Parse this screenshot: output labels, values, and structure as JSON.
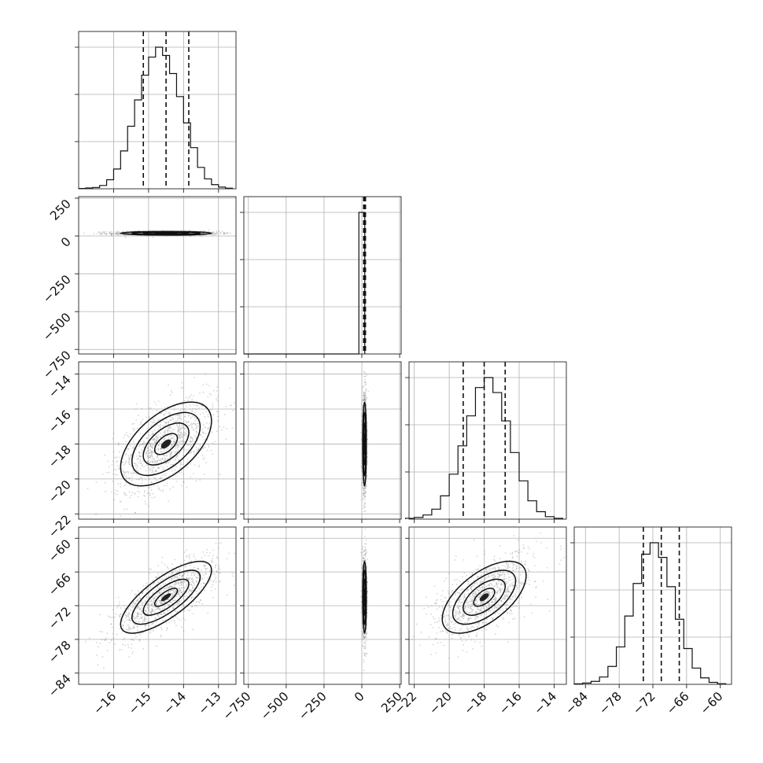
{
  "chart_data": {
    "type": "corner",
    "grid": true,
    "params": [
      {
        "range": [
          -17.0,
          -12.5
        ],
        "ticks": [
          -16,
          -15,
          -14,
          -13
        ],
        "tick_labels": [
          "−16",
          "−15",
          "−14",
          "−13"
        ],
        "mean": -14.5,
        "sd": 0.65,
        "q16": -15.15,
        "q50": -14.5,
        "q84": -13.85
      },
      {
        "range": [
          -780,
          260
        ],
        "ticks": [
          -750,
          -500,
          -250,
          0,
          250
        ],
        "tick_labels": [
          "−750",
          "−500",
          "−250",
          "0",
          "250"
        ],
        "mean": 18,
        "sd": 6,
        "q16": 12,
        "q50": 18,
        "q84": 24
      },
      {
        "range": [
          -22.3,
          -13.3
        ],
        "ticks": [
          -22,
          -20,
          -18,
          -16,
          -14
        ],
        "tick_labels": [
          "−22",
          "−20",
          "−18",
          "−16",
          "−14"
        ],
        "mean": -18.0,
        "sd": 1.2,
        "q16": -19.2,
        "q50": -18.0,
        "q84": -16.8
      },
      {
        "range": [
          -86,
          -58
        ],
        "ticks": [
          -84,
          -78,
          -72,
          -66,
          -60
        ],
        "tick_labels": [
          "−84",
          "−78",
          "−72",
          "−66",
          "−60"
        ],
        "mean": -70.5,
        "sd": 3.2,
        "q16": -73.7,
        "q50": -70.5,
        "q84": -67.3
      }
    ],
    "correlations": [
      [
        1,
        0,
        0.55,
        0.75
      ],
      [
        0,
        1,
        0,
        0
      ],
      [
        0.55,
        0,
        1,
        0.6
      ],
      [
        0.75,
        0,
        0.6,
        1
      ]
    ],
    "histograms": [
      {
        "param": 0,
        "edges": [
          -17.0,
          -16.8,
          -16.6,
          -16.4,
          -16.2,
          -16.0,
          -15.8,
          -15.6,
          -15.4,
          -15.2,
          -15.0,
          -14.8,
          -14.6,
          -14.4,
          -14.2,
          -14.0,
          -13.8,
          -13.6,
          -13.4,
          -13.2,
          -13.0,
          -12.8,
          -12.6
        ],
        "counts": [
          2,
          5,
          8,
          20,
          55,
          120,
          230,
          380,
          540,
          690,
          800,
          860,
          810,
          700,
          560,
          400,
          250,
          130,
          60,
          25,
          10,
          4
        ]
      },
      {
        "param": 1,
        "edges": [
          -780,
          -19.5,
          19.5
        ],
        "counts": [
          0,
          1
        ]
      },
      {
        "param": 2,
        "edges": [
          -22.5,
          -22.0,
          -21.5,
          -21.0,
          -20.5,
          -20.0,
          -19.5,
          -19.0,
          -18.5,
          -18.0,
          -17.5,
          -17.0,
          -16.5,
          -16.0,
          -15.5,
          -15.0,
          -14.5,
          -14.0,
          -13.5
        ],
        "counts": [
          5,
          10,
          25,
          60,
          140,
          270,
          440,
          620,
          790,
          850,
          760,
          590,
          400,
          230,
          110,
          45,
          15,
          5
        ]
      },
      {
        "param": 3,
        "edges": [
          -86,
          -84.5,
          -83,
          -81.5,
          -80,
          -78.5,
          -77,
          -75.5,
          -74,
          -72.5,
          -71,
          -69.5,
          -68,
          -66.5,
          -65,
          -63.5,
          -62,
          -60.5,
          -59
        ],
        "counts": [
          3,
          8,
          18,
          45,
          110,
          230,
          420,
          620,
          800,
          870,
          780,
          600,
          400,
          220,
          100,
          40,
          12,
          4
        ]
      }
    ]
  }
}
